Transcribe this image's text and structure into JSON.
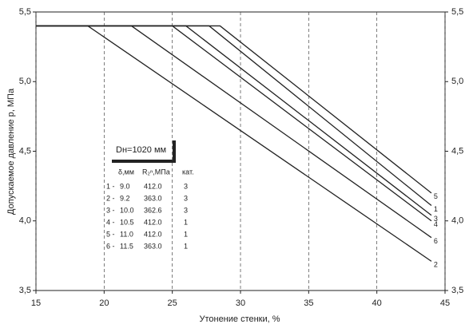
{
  "chart_data": {
    "type": "line",
    "xlabel": "Утонение стенки, %",
    "ylabel": "Допускаемое давление р, МПа",
    "xlim": [
      15,
      45
    ],
    "xticks": [
      15,
      20,
      25,
      30,
      35,
      40,
      45
    ],
    "ylim": [
      3.5,
      5.5
    ],
    "yticks": [
      {
        "value": 3.5,
        "label": "3,5"
      },
      {
        "value": 4.0,
        "label": "4,0"
      },
      {
        "value": 4.5,
        "label": "4,5"
      },
      {
        "value": 5.0,
        "label": "5,0"
      },
      {
        "value": 5.5,
        "label": "5,5"
      }
    ],
    "y2lim": [
      3.5,
      5.5
    ],
    "y2ticks": [
      {
        "value": 3.5,
        "label": "3,5"
      },
      {
        "value": 4.0,
        "label": "4,0"
      },
      {
        "value": 4.5,
        "label": "4,5"
      },
      {
        "value": 5.0,
        "label": "5,0"
      },
      {
        "value": 5.5,
        "label": "5,5"
      }
    ],
    "grid": true,
    "series": [
      {
        "name": "1",
        "color": "#222222",
        "x": [
          15,
          27.7,
          44
        ],
        "values": [
          5.4,
          5.4,
          4.11
        ]
      },
      {
        "name": "2",
        "color": "#222222",
        "x": [
          15,
          18.8,
          44
        ],
        "values": [
          5.4,
          5.4,
          3.71
        ]
      },
      {
        "name": "3",
        "color": "#222222",
        "x": [
          15,
          26.0,
          44
        ],
        "values": [
          5.4,
          5.4,
          4.04
        ]
      },
      {
        "name": "4",
        "color": "#222222",
        "x": [
          15,
          25.0,
          44
        ],
        "values": [
          5.4,
          5.4,
          4.0
        ]
      },
      {
        "name": "5",
        "color": "#222222",
        "x": [
          15,
          28.5,
          44
        ],
        "values": [
          5.4,
          5.4,
          4.2
        ]
      },
      {
        "name": "6",
        "color": "#222222",
        "x": [
          15,
          22.0,
          44
        ],
        "values": [
          5.4,
          5.4,
          3.88
        ]
      }
    ],
    "table": {
      "title": "Dн=1020 мм",
      "header": [
        "δ,мм",
        "R₂ⁿ,МПа",
        "кат."
      ],
      "rows": [
        [
          "1 -",
          "9.0",
          "412.0",
          "3"
        ],
        [
          "2 -",
          "9.2",
          "363.0",
          "3"
        ],
        [
          "3 -",
          "10.0",
          "362.6",
          "3"
        ],
        [
          "4 -",
          "10.5",
          "412.0",
          "1"
        ],
        [
          "5 -",
          "11.0",
          "412.0",
          "1"
        ],
        [
          "6 -",
          "11.5",
          "363.0",
          "1"
        ]
      ]
    }
  }
}
